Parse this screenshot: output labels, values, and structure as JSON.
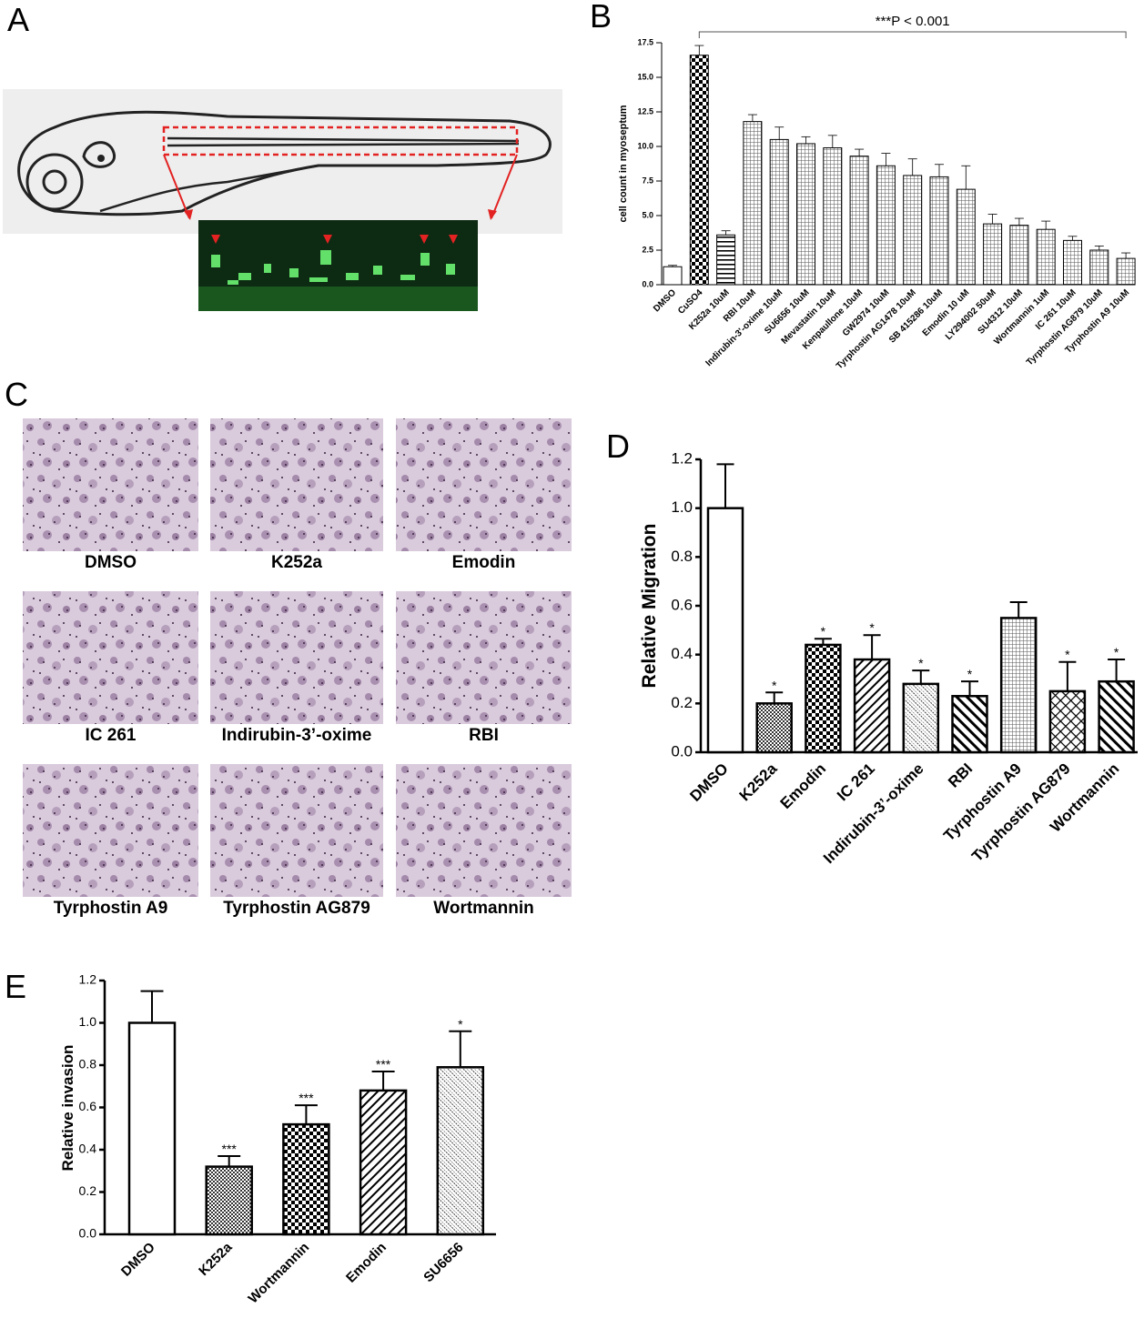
{
  "panel_labels": [
    "A",
    "B",
    "C",
    "D",
    "E"
  ],
  "image_panels": {
    "captions": [
      "DMSO",
      "K252a",
      "Emodin",
      "IC 261",
      "Indirubin-3’-oxime",
      "RBI",
      "Tyrphostin A9",
      "Tyrphostin AG879",
      "Wortmannin"
    ]
  },
  "chart_data": [
    {
      "type": "bar",
      "y_label": "cell count in myoseptum",
      "annotation": "***P < 0.001",
      "categories": [
        "DMSO",
        "CuSO4",
        "K252a 10uM",
        "RBI 10uM",
        "Indirubin-3'-oxime 10uM",
        "SU6656 10uM",
        "Mevastatin 10uM",
        "Kenpaullone 10uM",
        "GW2974 10uM",
        "Tyrphostin AG1478 10uM",
        "SB 415286 10uM",
        "Emodin 10 uM",
        "LY294002 50uM",
        "SU4312 10uM",
        "Wortmannin 1uM",
        "IC 261 10uM",
        "Tyrphostin AG879 10uM",
        "Tyrphostin A9 10uM"
      ],
      "values": [
        1.3,
        16.6,
        3.6,
        11.8,
        10.5,
        10.2,
        9.9,
        9.3,
        8.6,
        7.9,
        7.8,
        6.9,
        4.4,
        4.3,
        4.0,
        3.2,
        2.5,
        1.9
      ],
      "errors": [
        0.1,
        0.7,
        0.3,
        0.5,
        0.9,
        0.5,
        0.9,
        0.5,
        0.9,
        1.2,
        0.9,
        1.7,
        0.7,
        0.5,
        0.6,
        0.3,
        0.3,
        0.4
      ],
      "ylim": [
        0,
        17.5
      ],
      "yticks": [
        {
          "value": 0,
          "label": "0.0"
        },
        2.5,
        {
          "value": 5,
          "label": "5.0"
        },
        7.5,
        {
          "value": 10,
          "label": "10.0"
        },
        12.5,
        {
          "value": 15,
          "label": "15.0"
        },
        17.5
      ]
    },
    {
      "type": "bar",
      "y_label": "Relative Migration",
      "categories": [
        "DMSO",
        "K252a",
        "Emodin",
        "IC 261",
        "Indirubin-3’-oxime",
        "RBI",
        "Tyrphostin A9",
        "Tyrphostin AG879",
        "Wortmannin"
      ],
      "values": [
        1.0,
        0.2,
        0.44,
        0.38,
        0.28,
        0.23,
        0.55,
        0.25,
        0.29
      ],
      "errors": [
        0.18,
        0.045,
        0.025,
        0.1,
        0.055,
        0.06,
        0.065,
        0.12,
        0.09
      ],
      "significance": [
        null,
        "*",
        "*",
        "*",
        "*",
        "*",
        null,
        "*",
        "*"
      ],
      "ylim": [
        0,
        1.2
      ],
      "yticks": [
        {
          "value": 0,
          "label": "0.0"
        },
        0.2,
        0.4,
        0.6,
        0.8,
        {
          "value": 1,
          "label": "1.0"
        },
        1.2
      ]
    },
    {
      "type": "bar",
      "y_label": "Relative invasion",
      "categories": [
        "DMSO",
        "K252a",
        "Wortmannin",
        "Emodin",
        "SU6656"
      ],
      "values": [
        1.0,
        0.32,
        0.52,
        0.68,
        0.79
      ],
      "errors": [
        0.15,
        0.05,
        0.09,
        0.09,
        0.17
      ],
      "significance": [
        null,
        "***",
        "***",
        "***",
        "*"
      ],
      "ylim": [
        0,
        1.2
      ],
      "yticks": [
        {
          "value": 0,
          "label": "0.0"
        },
        0.2,
        0.4,
        0.6,
        0.8,
        {
          "value": 1,
          "label": "1.0"
        },
        1.2
      ]
    }
  ]
}
